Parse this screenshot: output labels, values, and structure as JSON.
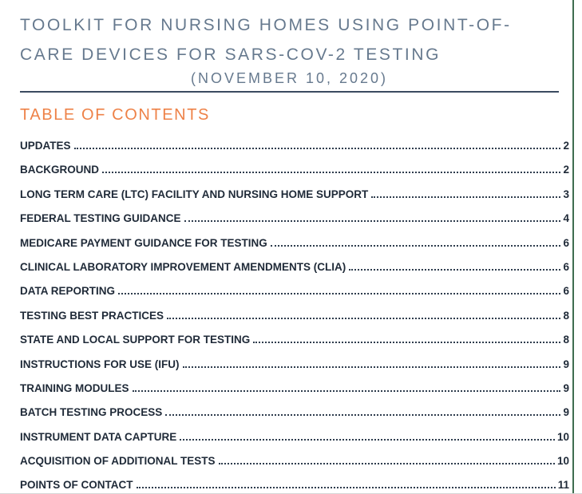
{
  "document": {
    "title_line1": "TOOLKIT FOR NURSING HOMES USING POINT-OF-",
    "title_line2": "CARE DEVICES FOR SARS-COV-2 TESTING",
    "date_line": "(NOVEMBER 10, 2020)",
    "toc_heading": "TABLE OF CONTENTS"
  },
  "toc_entries": [
    {
      "label": "UPDATES",
      "page": "2"
    },
    {
      "label": "BACKGROUND",
      "page": "2"
    },
    {
      "label": "LONG TERM CARE (LTC) FACILITY AND NURSING HOME SUPPORT",
      "page": "3"
    },
    {
      "label": "FEDERAL TESTING GUIDANCE",
      "page": "4"
    },
    {
      "label": "MEDICARE PAYMENT GUIDANCE FOR TESTING",
      "page": "6"
    },
    {
      "label": "CLINICAL LABORATORY IMPROVEMENT AMENDMENTS (CLIA)",
      "page": "6"
    },
    {
      "label": "DATA REPORTING",
      "page": "6"
    },
    {
      "label": "TESTING BEST PRACTICES",
      "page": "8"
    },
    {
      "label": "STATE AND LOCAL SUPPORT FOR TESTING",
      "page": "8"
    },
    {
      "label": "INSTRUCTIONS FOR USE (IFU)",
      "page": "9"
    },
    {
      "label": "TRAINING MODULES",
      "page": "9"
    },
    {
      "label": "BATCH TESTING PROCESS",
      "page": "9"
    },
    {
      "label": "INSTRUMENT DATA CAPTURE",
      "page": "10"
    },
    {
      "label": "ACQUISITION OF ADDITIONAL TESTS",
      "page": "10"
    },
    {
      "label": "POINTS OF CONTACT",
      "page": "11"
    }
  ],
  "colors": {
    "title": "#66798e",
    "rule": "#3b4b60",
    "accent_orange": "#ee8248",
    "toc_text": "#1f2a38",
    "leader": "#2e3c4d",
    "green_border": "#3f6e4f"
  }
}
